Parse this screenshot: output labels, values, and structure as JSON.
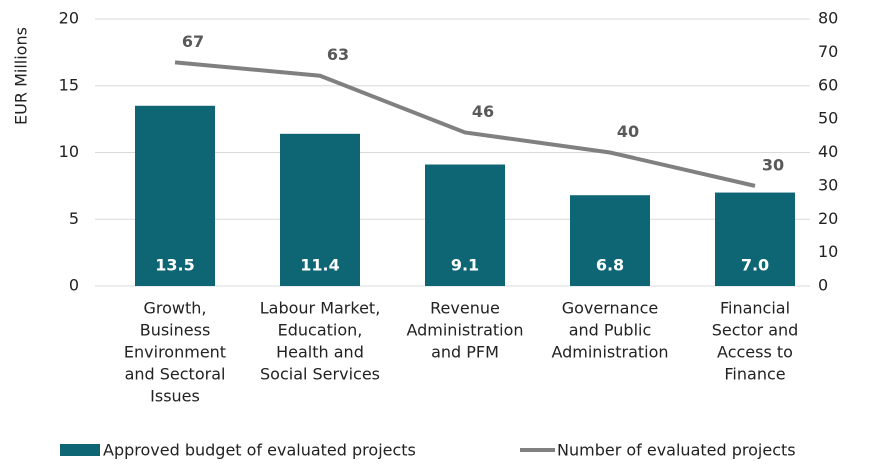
{
  "chart_data": {
    "type": "bar_line",
    "y_label": "EUR Millions",
    "categories": [
      [
        "Growth,",
        "Business",
        "Environment",
        "and Sectoral",
        "Issues"
      ],
      [
        "Labour Market,",
        "Education,",
        "Health and",
        "Social Services"
      ],
      [
        "Revenue",
        "Administration",
        "and PFM"
      ],
      [
        "Governance",
        "and Public",
        "Administration"
      ],
      [
        "Financial",
        "Sector and",
        "Access to",
        "Finance"
      ]
    ],
    "series": [
      {
        "name": "Approved budget of evaluated projects",
        "type": "bar",
        "color": "#0e6674",
        "values": [
          13.5,
          11.4,
          9.1,
          6.8,
          7.0
        ],
        "value_labels": [
          "13.5",
          "11.4",
          "9.1",
          "6.8",
          "7.0"
        ]
      },
      {
        "name": "Number of evaluated projects",
        "type": "line",
        "axis": "y2",
        "color": "#808080",
        "values": [
          67,
          63,
          46,
          40,
          30
        ]
      }
    ],
    "ylim": [
      0,
      20
    ],
    "yticks": [
      0,
      5,
      10,
      15,
      20
    ],
    "y2lim": [
      0,
      80
    ],
    "y2ticks": [
      0,
      10,
      20,
      30,
      40,
      50,
      60,
      70,
      80
    ],
    "grid": true,
    "legend": "bottom"
  }
}
